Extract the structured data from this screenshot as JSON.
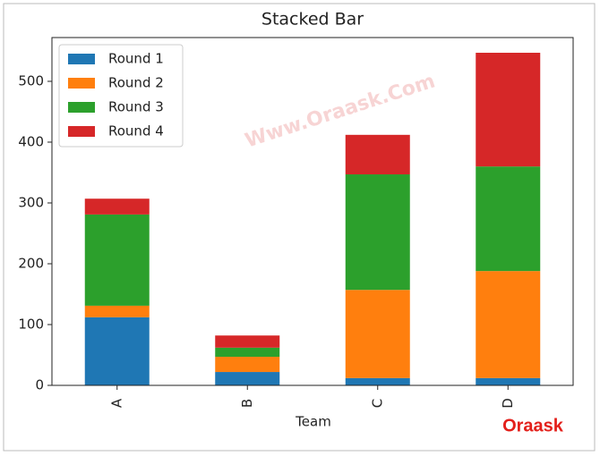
{
  "chart_data": {
    "type": "stacked-bar",
    "title": "Stacked Bar",
    "x_label": "Team",
    "categories": [
      "A",
      "B",
      "C",
      "D"
    ],
    "series": [
      {
        "name": "Round 1",
        "color": "#1f77b4",
        "values": [
          112,
          22,
          12,
          12
        ]
      },
      {
        "name": "Round 2",
        "color": "#ff7f0e",
        "values": [
          19,
          25,
          145,
          176
        ]
      },
      {
        "name": "Round 3",
        "color": "#2ca02c",
        "values": [
          150,
          15,
          190,
          172
        ]
      },
      {
        "name": "Round 4",
        "color": "#d62728",
        "values": [
          26,
          20,
          65,
          187
        ]
      }
    ],
    "ylim": [
      0,
      572
    ],
    "yticks": [
      0,
      100,
      200,
      300,
      400,
      500
    ],
    "legend": "upper left",
    "watermark": "Www.Oraask.Com",
    "logo": "Oraask"
  }
}
